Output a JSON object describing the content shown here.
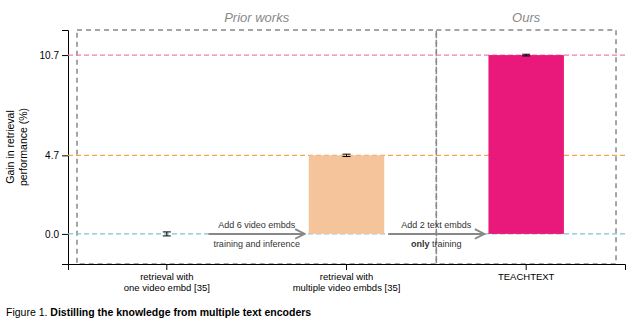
{
  "chart_data": {
    "type": "bar",
    "categories": [
      "retrieval with\none video embd [35]",
      "retrieval with\nmultiple video embds [35]",
      "TEACHTEXT"
    ],
    "values": [
      0.0,
      4.7,
      10.7
    ],
    "errors": [
      0.12,
      0.07,
      0.05
    ],
    "colors": [
      "#4a72aa",
      "#f5c49a",
      "#e8197a"
    ],
    "ylim": [
      -1.8,
      12.2
    ],
    "yticks": [
      {
        "value": 0.0,
        "label": "0.0"
      },
      4.7,
      10.7
    ],
    "ylabel": "Gain in retrieval\nperformance (%)",
    "reference_lines": [
      {
        "value": 0.0,
        "color": "#85c0dc"
      },
      {
        "value": 4.7,
        "color": "#f0a84a"
      },
      {
        "value": 10.7,
        "color": "#f080b0"
      }
    ],
    "groups": [
      {
        "label": "Prior works",
        "count": 2
      },
      {
        "label": "Ours",
        "count": 1
      }
    ],
    "annotations": [
      {
        "above": [
          {
            "text": "Add 6 video embds"
          }
        ],
        "below": [
          {
            "text": "training and inference"
          }
        ]
      },
      {
        "above": [
          {
            "text": "Add 2 text embds"
          }
        ],
        "below": [
          {
            "text": "only",
            "bold": true
          },
          {
            "text": " training"
          }
        ]
      }
    ],
    "caption": [
      {
        "text": "Figure 1. "
      },
      {
        "text": "Distilling the knowledge from multiple text encoders",
        "bold": true
      }
    ]
  }
}
